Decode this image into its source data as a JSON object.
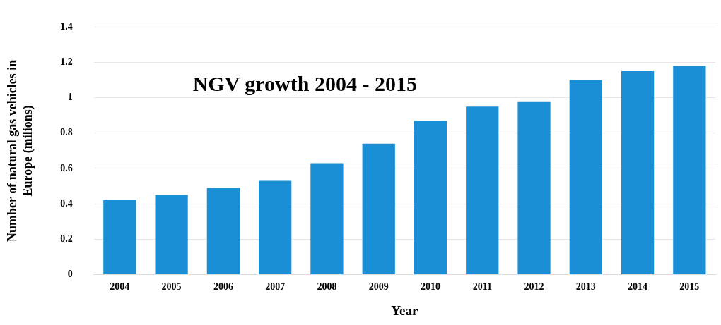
{
  "chart_data": {
    "type": "bar",
    "title": "NGV growth 2004 - 2015",
    "xlabel": "Year",
    "ylabel": "Number of natural gas vehicles in Europe (milions)",
    "categories": [
      "2004",
      "2005",
      "2006",
      "2007",
      "2008",
      "2009",
      "2010",
      "2011",
      "2012",
      "2013",
      "2014",
      "2015"
    ],
    "values": [
      0.42,
      0.45,
      0.49,
      0.53,
      0.63,
      0.74,
      0.87,
      0.95,
      0.98,
      1.1,
      1.15,
      1.18
    ],
    "color": "#1a8fd6",
    "ylim": [
      0,
      1.4
    ],
    "yticks": [
      0,
      0.2,
      0.4,
      0.6,
      0.8,
      1,
      1.2,
      1.4
    ],
    "grid": "y"
  }
}
